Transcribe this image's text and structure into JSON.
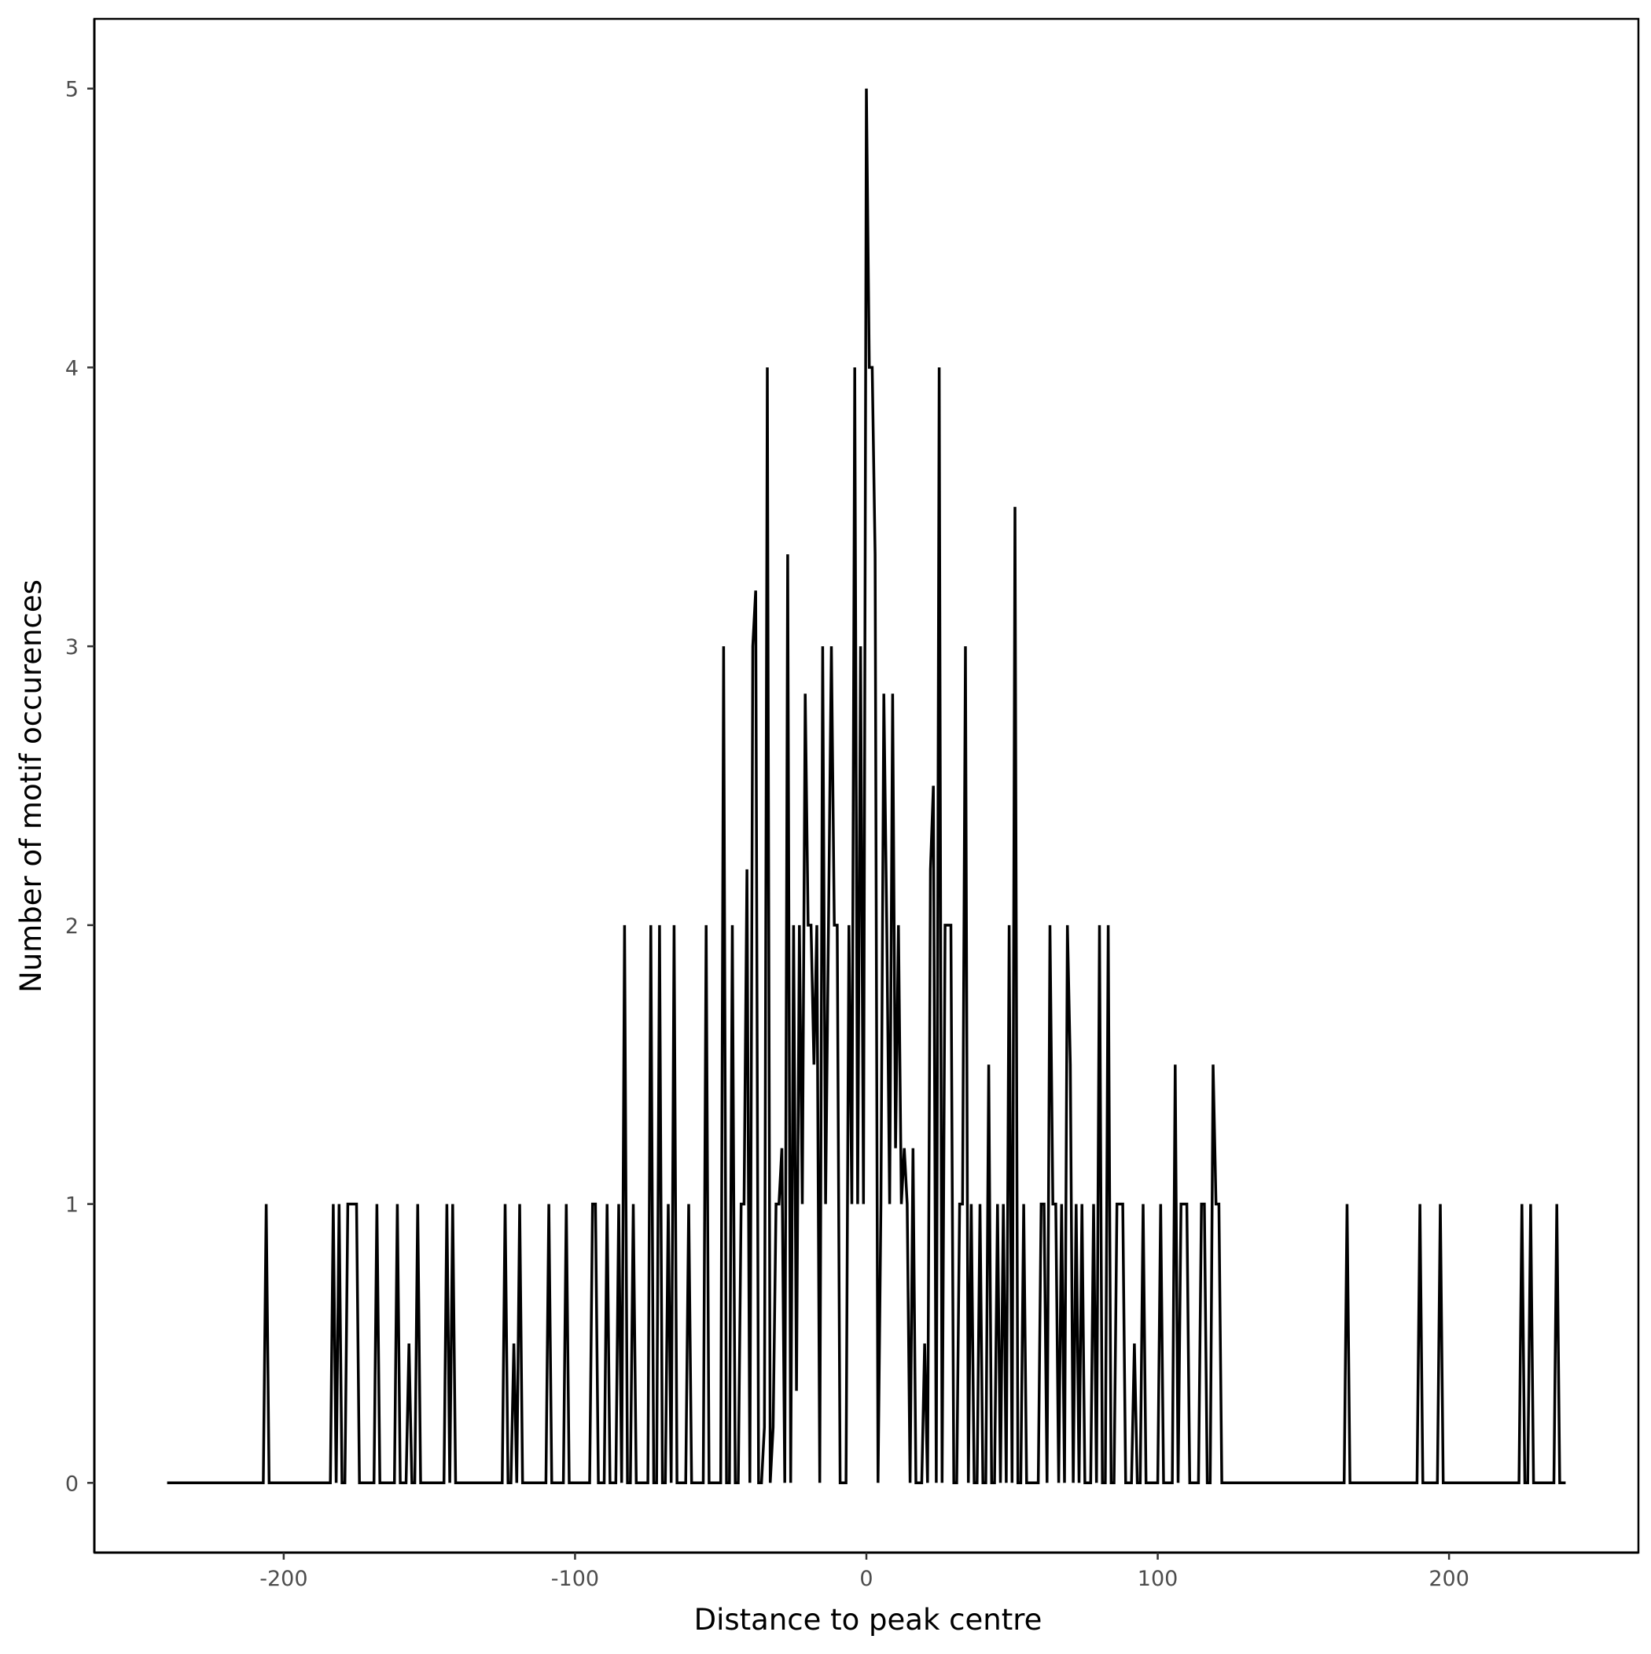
{
  "chart_data": {
    "type": "line",
    "title": "",
    "xlabel": "Distance to peak centre",
    "ylabel": "Number of motif occurences",
    "xlim": [
      -265,
      265
    ],
    "ylim": [
      -0.25,
      5.25
    ],
    "x_range": [
      -240,
      240
    ],
    "baseline_value": 0,
    "x_ticks": [
      -200,
      -100,
      0,
      100,
      200
    ],
    "x_tick_labels": [
      "-200",
      "-100",
      "0",
      "100",
      "200"
    ],
    "y_ticks": [
      0,
      1,
      2,
      3,
      4,
      5
    ],
    "y_tick_labels": [
      "0",
      "1",
      "2",
      "3",
      "4",
      "5"
    ],
    "grid": false,
    "line_color": "#000000",
    "nonzero_points": [
      [
        -206,
        1
      ],
      [
        -183,
        1
      ],
      [
        -181,
        1
      ],
      [
        -178,
        1
      ],
      [
        -177,
        1
      ],
      [
        -176,
        1
      ],
      [
        -175,
        1
      ],
      [
        -168,
        1
      ],
      [
        -161,
        1
      ],
      [
        -157,
        0.5
      ],
      [
        -154,
        1
      ],
      [
        -144,
        1
      ],
      [
        -142,
        1
      ],
      [
        -124,
        1
      ],
      [
        -121,
        0.5
      ],
      [
        -119,
        1
      ],
      [
        -109,
        1
      ],
      [
        -103,
        1
      ],
      [
        -94,
        1
      ],
      [
        -93,
        1
      ],
      [
        -89,
        1
      ],
      [
        -85,
        1
      ],
      [
        -83,
        2
      ],
      [
        -80,
        1
      ],
      [
        -74,
        2
      ],
      [
        -71,
        2
      ],
      [
        -68,
        1
      ],
      [
        -66,
        2
      ],
      [
        -61,
        1
      ],
      [
        -55,
        2
      ],
      [
        -49,
        3
      ],
      [
        -46,
        2
      ],
      [
        -43,
        1
      ],
      [
        -42,
        1
      ],
      [
        -41,
        2.2
      ],
      [
        -39,
        3
      ],
      [
        -38,
        3.2
      ],
      [
        -35,
        0.2
      ],
      [
        -34,
        4
      ],
      [
        -32,
        0.2
      ],
      [
        -31,
        1
      ],
      [
        -30,
        1
      ],
      [
        -29,
        1.2
      ],
      [
        -27,
        3.33
      ],
      [
        -25,
        2
      ],
      [
        -24,
        0.33
      ],
      [
        -23,
        2
      ],
      [
        -22,
        1
      ],
      [
        -21,
        2.83
      ],
      [
        -20,
        2
      ],
      [
        -19,
        2
      ],
      [
        -18,
        1.5
      ],
      [
        -17,
        2
      ],
      [
        -15,
        3
      ],
      [
        -14,
        1
      ],
      [
        -13,
        2
      ],
      [
        -12,
        3
      ],
      [
        -11,
        2
      ],
      [
        -10,
        2
      ],
      [
        -6,
        2
      ],
      [
        -5,
        1
      ],
      [
        -4,
        4
      ],
      [
        -3,
        1
      ],
      [
        -2,
        3
      ],
      [
        -1,
        1
      ],
      [
        0,
        5
      ],
      [
        1,
        4
      ],
      [
        2,
        4
      ],
      [
        3,
        3.33
      ],
      [
        5,
        1
      ],
      [
        6,
        2.83
      ],
      [
        7,
        2
      ],
      [
        8,
        1
      ],
      [
        9,
        2.83
      ],
      [
        10,
        1.2
      ],
      [
        11,
        2
      ],
      [
        12,
        1
      ],
      [
        13,
        1.2
      ],
      [
        14,
        1
      ],
      [
        16,
        1.2
      ],
      [
        20,
        0.5
      ],
      [
        22,
        2.2
      ],
      [
        23,
        2.5
      ],
      [
        25,
        4
      ],
      [
        27,
        2
      ],
      [
        28,
        2
      ],
      [
        29,
        2
      ],
      [
        32,
        1
      ],
      [
        33,
        1
      ],
      [
        34,
        3
      ],
      [
        36,
        1
      ],
      [
        39,
        1
      ],
      [
        42,
        1.5
      ],
      [
        45,
        1
      ],
      [
        47,
        1
      ],
      [
        49,
        2
      ],
      [
        51,
        3.5
      ],
      [
        54,
        1
      ],
      [
        60,
        1
      ],
      [
        61,
        1
      ],
      [
        63,
        2
      ],
      [
        64,
        1
      ],
      [
        65,
        1
      ],
      [
        67,
        1
      ],
      [
        69,
        2
      ],
      [
        70,
        1.5
      ],
      [
        72,
        1
      ],
      [
        74,
        1
      ],
      [
        78,
        1
      ],
      [
        80,
        2
      ],
      [
        83,
        2
      ],
      [
        86,
        1
      ],
      [
        87,
        1
      ],
      [
        88,
        1
      ],
      [
        92,
        0.5
      ],
      [
        95,
        1
      ],
      [
        101,
        1
      ],
      [
        106,
        1.5
      ],
      [
        108,
        1
      ],
      [
        109,
        1
      ],
      [
        110,
        1
      ],
      [
        115,
        1
      ],
      [
        116,
        1
      ],
      [
        119,
        1.5
      ],
      [
        120,
        1
      ],
      [
        121,
        1
      ],
      [
        165,
        1
      ],
      [
        190,
        1
      ],
      [
        197,
        1
      ],
      [
        225,
        1
      ],
      [
        228,
        1
      ],
      [
        237,
        1
      ]
    ]
  }
}
